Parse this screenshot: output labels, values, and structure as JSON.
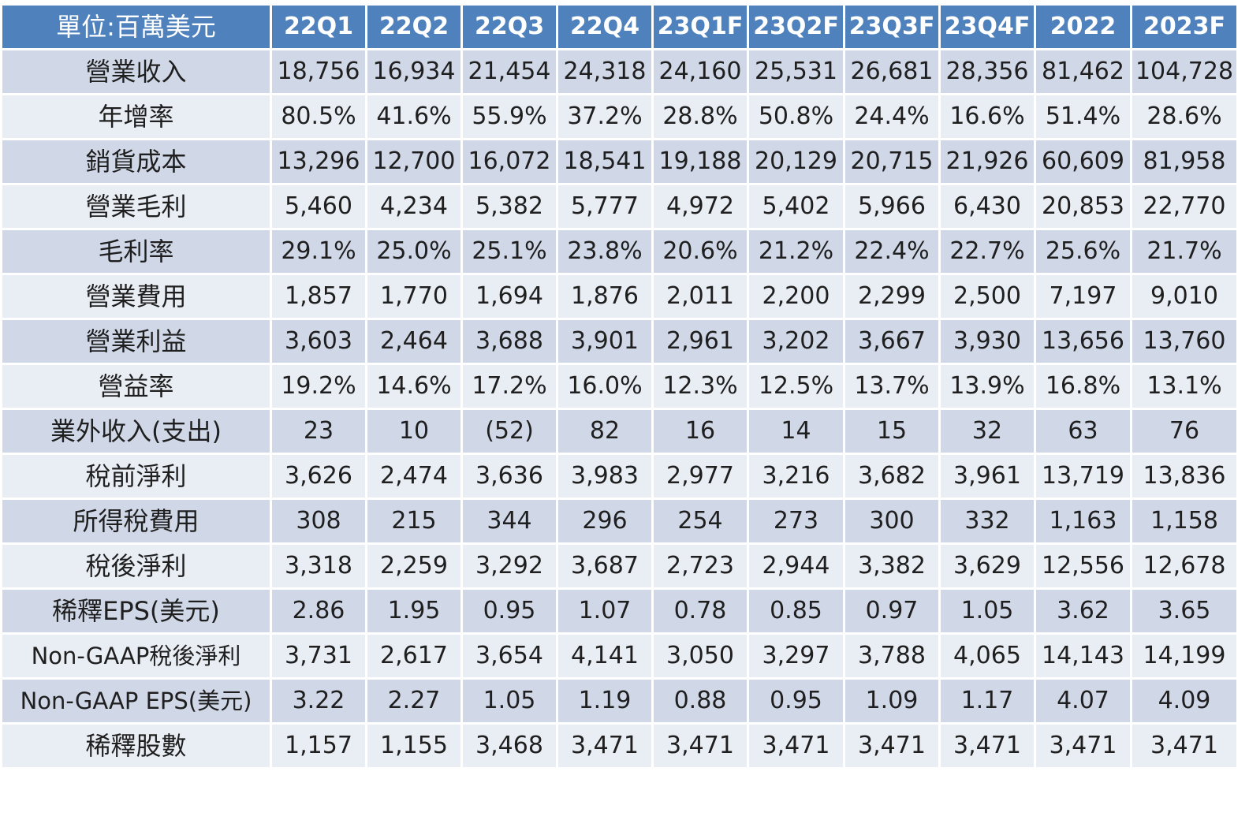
{
  "table": {
    "unit_label": "單位:百萬美元",
    "columns": [
      "22Q1",
      "22Q2",
      "22Q3",
      "22Q4",
      "23Q1F",
      "23Q2F",
      "23Q3F",
      "23Q4F",
      "2022",
      "2023F"
    ],
    "rows": [
      {
        "label": "營業收入",
        "values": [
          "18,756",
          "16,934",
          "21,454",
          "24,318",
          "24,160",
          "25,531",
          "26,681",
          "28,356",
          "81,462",
          "104,728"
        ]
      },
      {
        "label": "年增率",
        "values": [
          "80.5%",
          "41.6%",
          "55.9%",
          "37.2%",
          "28.8%",
          "50.8%",
          "24.4%",
          "16.6%",
          "51.4%",
          "28.6%"
        ]
      },
      {
        "label": "銷貨成本",
        "values": [
          "13,296",
          "12,700",
          "16,072",
          "18,541",
          "19,188",
          "20,129",
          "20,715",
          "21,926",
          "60,609",
          "81,958"
        ]
      },
      {
        "label": "營業毛利",
        "values": [
          "5,460",
          "4,234",
          "5,382",
          "5,777",
          "4,972",
          "5,402",
          "5,966",
          "6,430",
          "20,853",
          "22,770"
        ]
      },
      {
        "label": "毛利率",
        "values": [
          "29.1%",
          "25.0%",
          "25.1%",
          "23.8%",
          "20.6%",
          "21.2%",
          "22.4%",
          "22.7%",
          "25.6%",
          "21.7%"
        ]
      },
      {
        "label": "營業費用",
        "values": [
          "1,857",
          "1,770",
          "1,694",
          "1,876",
          "2,011",
          "2,200",
          "2,299",
          "2,500",
          "7,197",
          "9,010"
        ]
      },
      {
        "label": "營業利益",
        "values": [
          "3,603",
          "2,464",
          "3,688",
          "3,901",
          "2,961",
          "3,202",
          "3,667",
          "3,930",
          "13,656",
          "13,760"
        ]
      },
      {
        "label": "營益率",
        "values": [
          "19.2%",
          "14.6%",
          "17.2%",
          "16.0%",
          "12.3%",
          "12.5%",
          "13.7%",
          "13.9%",
          "16.8%",
          "13.1%"
        ]
      },
      {
        "label": "業外收入(支出)",
        "values": [
          "23",
          "10",
          "(52)",
          "82",
          "16",
          "14",
          "15",
          "32",
          "63",
          "76"
        ]
      },
      {
        "label": "稅前淨利",
        "values": [
          "3,626",
          "2,474",
          "3,636",
          "3,983",
          "2,977",
          "3,216",
          "3,682",
          "3,961",
          "13,719",
          "13,836"
        ]
      },
      {
        "label": "所得稅費用",
        "values": [
          "308",
          "215",
          "344",
          "296",
          "254",
          "273",
          "300",
          "332",
          "1,163",
          "1,158"
        ]
      },
      {
        "label": "稅後淨利",
        "values": [
          "3,318",
          "2,259",
          "3,292",
          "3,687",
          "2,723",
          "2,944",
          "3,382",
          "3,629",
          "12,556",
          "12,678"
        ]
      },
      {
        "label": "稀釋EPS(美元)",
        "values": [
          "2.86",
          "1.95",
          "0.95",
          "1.07",
          "0.78",
          "0.85",
          "0.97",
          "1.05",
          "3.62",
          "3.65"
        ]
      },
      {
        "label": "Non-GAAP稅後淨利",
        "values": [
          "3,731",
          "2,617",
          "3,654",
          "4,141",
          "3,050",
          "3,297",
          "3,788",
          "4,065",
          "14,143",
          "14,199"
        ]
      },
      {
        "label": "Non-GAAP EPS(美元)",
        "values": [
          "3.22",
          "2.27",
          "1.05",
          "1.19",
          "0.88",
          "0.95",
          "1.09",
          "1.17",
          "4.07",
          "4.09"
        ]
      },
      {
        "label": "稀釋股數",
        "values": [
          "1,157",
          "1,155",
          "3,468",
          "3,471",
          "3,471",
          "3,471",
          "3,471",
          "3,471",
          "3,471",
          "3,471"
        ]
      }
    ]
  },
  "colors": {
    "header_bg": "#4f81bd",
    "header_text": "#ffffff",
    "row_band_dark": "#d0d8e8",
    "row_band_light": "#e9edf4",
    "cell_text": "#1f1f1f",
    "grid_line": "#ffffff"
  }
}
